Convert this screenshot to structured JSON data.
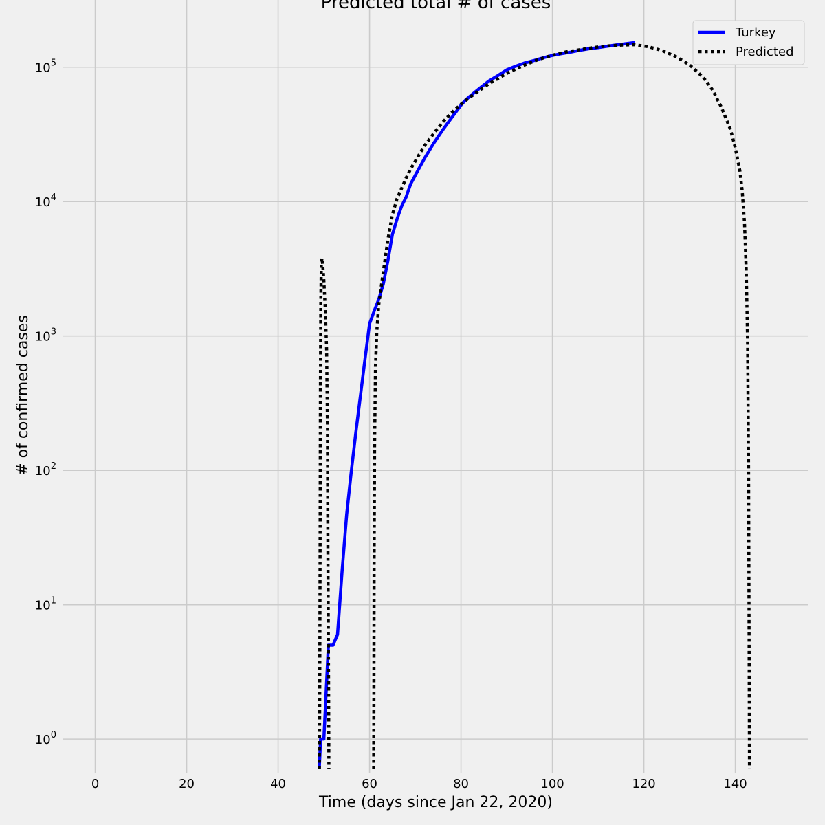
{
  "chart_data": {
    "type": "line",
    "title": "Predicted total # of cases",
    "xlabel": "Time (days since Jan 22, 2020)",
    "ylabel": "# of confirmed cases",
    "xlim": [
      -7,
      156
    ],
    "ylim_log10": [
      -0.25,
      5.5
    ],
    "y_scale": "log",
    "grid": true,
    "legend_position": "top-right",
    "x_ticks": [
      0,
      20,
      40,
      60,
      80,
      100,
      120,
      140
    ],
    "y_ticks": [
      {
        "exp": 0,
        "base": "10",
        "sup": "0"
      },
      {
        "exp": 1,
        "base": "10",
        "sup": "1"
      },
      {
        "exp": 2,
        "base": "10",
        "sup": "2"
      },
      {
        "exp": 3,
        "base": "10",
        "sup": "3"
      },
      {
        "exp": 4,
        "base": "10",
        "sup": "4"
      },
      {
        "exp": 5,
        "base": "10",
        "sup": "5"
      }
    ],
    "series": [
      {
        "name": "Turkey",
        "color": "#0000ff",
        "style": "solid",
        "x": [
          49,
          49.3,
          50,
          51,
          52,
          53,
          54,
          55,
          56,
          57,
          58,
          59,
          60,
          61,
          62,
          63,
          64,
          65,
          66,
          67,
          68,
          69,
          70,
          72,
          74,
          76,
          78,
          80,
          81,
          83,
          86,
          88,
          90,
          92,
          94,
          96,
          98,
          100,
          102,
          104,
          106,
          108,
          110,
          112,
          114,
          116,
          118
        ],
        "y": [
          0.6,
          1,
          1,
          5,
          5,
          6,
          18,
          47,
          98,
          191,
          359,
          670,
          1236,
          1529,
          1872,
          2433,
          3629,
          5698,
          7402,
          9217,
          10827,
          13531,
          15679,
          20921,
          27069,
          34109,
          42282,
          52167,
          56956,
          65111,
          78546,
          86306,
          95591,
          101790,
          107773,
          112261,
          117589,
          122392,
          126045,
          129491,
          133721,
          137115,
          139771,
          143114,
          146457,
          149435,
          152587
        ]
      },
      {
        "name": "Predicted",
        "color": "#000000",
        "style": "dotted",
        "x": [
          49.02,
          49.1,
          49.18,
          49.25,
          49.35,
          49.45,
          49.6,
          49.75,
          50.0,
          50.3,
          50.6,
          50.8,
          50.9,
          51.05,
          51.1
        ],
        "y": [
          0.6,
          2,
          20,
          400,
          1800,
          3400,
          3800,
          3400,
          2600,
          1600,
          800,
          200,
          20,
          2,
          0.6
        ]
      },
      {
        "name": "Predicted",
        "color": "#000000",
        "style": "dotted",
        "x": [
          60.9,
          60.95,
          61.0,
          61.1,
          61.3,
          61.6,
          62.0,
          63,
          64,
          65,
          66,
          67,
          68,
          69,
          70,
          72,
          74,
          76,
          78,
          80,
          82,
          84,
          86,
          88,
          90,
          92,
          94,
          96,
          98,
          100,
          103,
          106,
          109,
          112,
          115,
          118,
          121,
          124,
          127,
          130,
          133,
          135,
          137,
          139,
          140,
          141,
          141.5,
          142,
          142.4,
          142.7,
          142.9,
          143.0,
          143.05,
          143.1
        ],
        "y": [
          0.6,
          2,
          20,
          150,
          600,
          1100,
          1700,
          3000,
          5200,
          8000,
          10500,
          12500,
          15000,
          17500,
          20000,
          26000,
          32000,
          39000,
          46000,
          53000,
          60000,
          67000,
          75000,
          82000,
          90000,
          97000,
          104000,
          111000,
          117000,
          123000,
          130000,
          135000,
          140000,
          144000,
          146000,
          147000,
          142000,
          133000,
          120000,
          104000,
          84000,
          68000,
          50000,
          34000,
          25000,
          17000,
          12000,
          7000,
          3000,
          800,
          100,
          10,
          2,
          0.6
        ]
      }
    ]
  }
}
